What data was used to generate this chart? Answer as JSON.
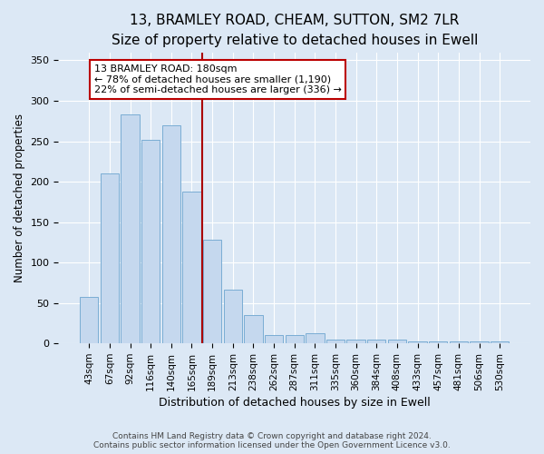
{
  "title": "13, BRAMLEY ROAD, CHEAM, SUTTON, SM2 7LR",
  "subtitle": "Size of property relative to detached houses in Ewell",
  "xlabel": "Distribution of detached houses by size in Ewell",
  "ylabel": "Number of detached properties",
  "categories": [
    "43sqm",
    "67sqm",
    "92sqm",
    "116sqm",
    "140sqm",
    "165sqm",
    "189sqm",
    "213sqm",
    "238sqm",
    "262sqm",
    "287sqm",
    "311sqm",
    "335sqm",
    "360sqm",
    "384sqm",
    "408sqm",
    "433sqm",
    "457sqm",
    "481sqm",
    "506sqm",
    "530sqm"
  ],
  "values": [
    58,
    210,
    283,
    252,
    270,
    188,
    128,
    67,
    35,
    10,
    10,
    13,
    5,
    5,
    5,
    5,
    3,
    3,
    3,
    3,
    2
  ],
  "bar_color": "#c5d8ee",
  "bar_edge_color": "#7aadd4",
  "vline_x": 6,
  "vline_color": "#aa0000",
  "annotation_text": "13 BRAMLEY ROAD: 180sqm\n← 78% of detached houses are smaller (1,190)\n22% of semi-detached houses are larger (336) →",
  "annotation_box_color": "#ffffff",
  "annotation_box_edge_color": "#bb0000",
  "ylim": [
    0,
    360
  ],
  "yticks": [
    0,
    50,
    100,
    150,
    200,
    250,
    300,
    350
  ],
  "background_color": "#dce8f5",
  "plot_background_color": "#dce8f5",
  "footer": "Contains HM Land Registry data © Crown copyright and database right 2024.\nContains public sector information licensed under the Open Government Licence v3.0.",
  "title_fontsize": 11,
  "xlabel_fontsize": 9,
  "ylabel_fontsize": 8.5,
  "footer_fontsize": 6.5,
  "annotation_fontsize": 8
}
